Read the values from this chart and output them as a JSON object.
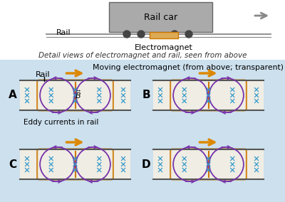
{
  "bg_color": "#cce0ee",
  "rail_color": "#555555",
  "magnet_color": "#cc7700",
  "eddy_color": "#7733aa",
  "x_color": "#3399cc",
  "arrow_color": "#dd8800",
  "fig_w": 4.0,
  "fig_h": 2.84,
  "rail_car_label": "Rail car",
  "electromagnet_label": "Electromagnet",
  "rail_label": "Rail",
  "detail_label": "Detail views of electromagnet and rail, seen from above",
  "moving_label": "Moving electromagnet (from above; transparent)",
  "eddy_label": "Eddy currents in rail",
  "panel_labels": [
    "A",
    "B",
    "C",
    "D"
  ]
}
